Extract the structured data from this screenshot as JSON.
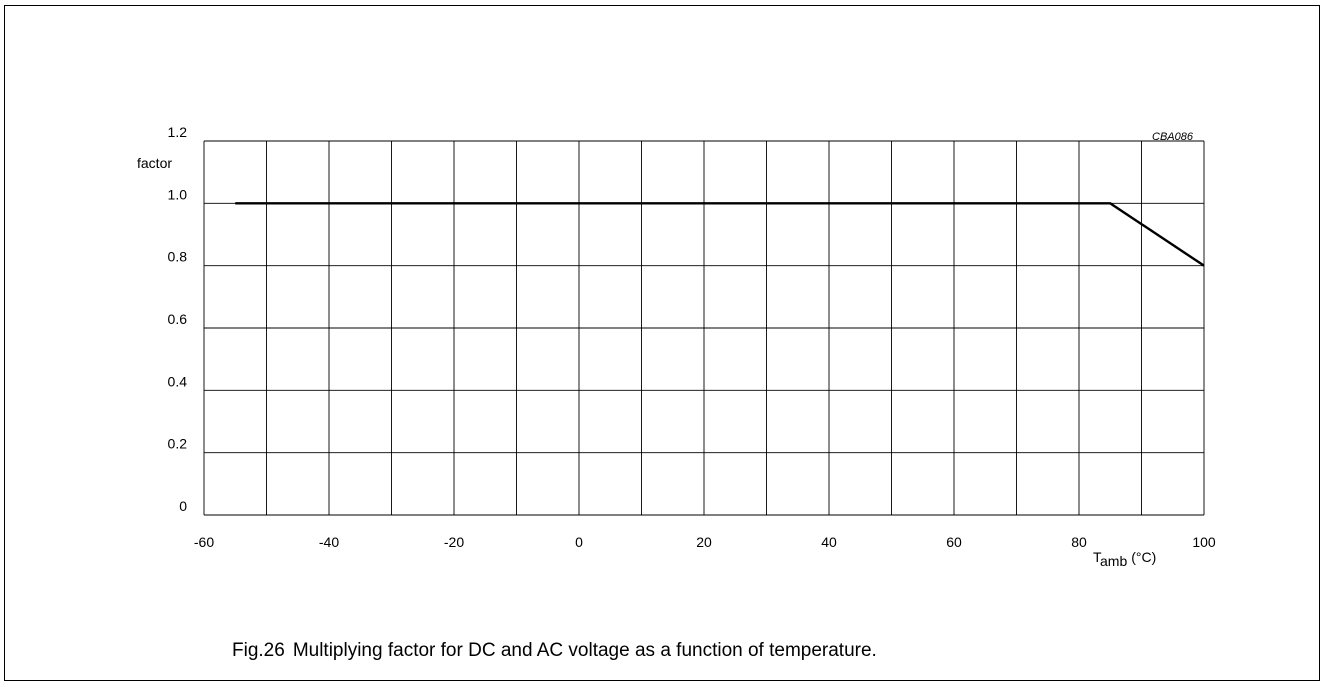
{
  "figure": {
    "code": "CBA086",
    "caption_number": "Fig.26",
    "caption_text": "Multiplying factor for DC and AC voltage as a function of temperature."
  },
  "chart_data": {
    "type": "line",
    "title": "",
    "ylabel": "factor",
    "xlabel_main": "T",
    "xlabel_sub": "amb",
    "xlabel_unit": "(°C)",
    "xlim": [
      -60,
      100
    ],
    "ylim": [
      0,
      1.2
    ],
    "x_ticks": [
      -60,
      -40,
      -20,
      0,
      20,
      40,
      60,
      80,
      100
    ],
    "x_tick_labels": [
      "-60",
      "-40",
      "-20",
      "0",
      "20",
      "40",
      "60",
      "80",
      "100"
    ],
    "y_ticks": [
      0,
      0.2,
      0.4,
      0.6,
      0.8,
      1.0,
      1.2
    ],
    "y_tick_labels": [
      "0",
      "0.2",
      "0.4",
      "0.6",
      "0.8",
      "1.0",
      "1.2"
    ],
    "x_grid_step": 10,
    "grid": true,
    "legend": false,
    "series": [
      {
        "x": [
          -55,
          85,
          100
        ],
        "y": [
          1.0,
          1.0,
          0.8
        ]
      }
    ]
  }
}
